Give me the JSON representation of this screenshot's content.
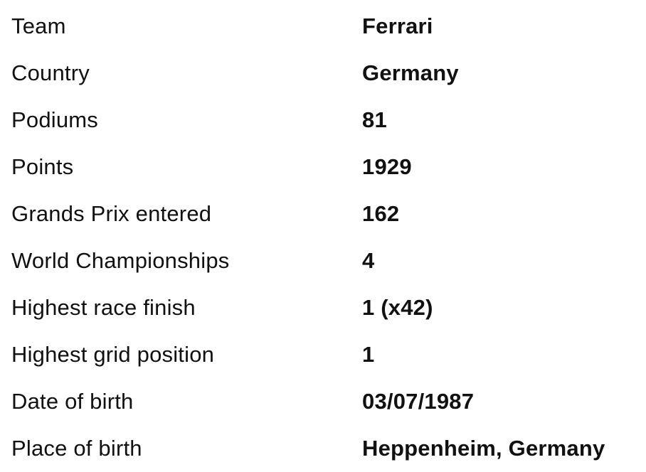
{
  "driver_stats": {
    "rows": [
      {
        "label": "Team",
        "value": "Ferrari"
      },
      {
        "label": "Country",
        "value": "Germany"
      },
      {
        "label": "Podiums",
        "value": "81"
      },
      {
        "label": "Points",
        "value": "1929"
      },
      {
        "label": "Grands Prix entered",
        "value": "162"
      },
      {
        "label": "World Championships",
        "value": "4"
      },
      {
        "label": "Highest race finish",
        "value": "1 (x42)"
      },
      {
        "label": "Highest grid position",
        "value": "1"
      },
      {
        "label": "Date of birth",
        "value": "03/07/1987"
      },
      {
        "label": "Place of birth",
        "value": "Heppenheim, Germany"
      }
    ]
  }
}
